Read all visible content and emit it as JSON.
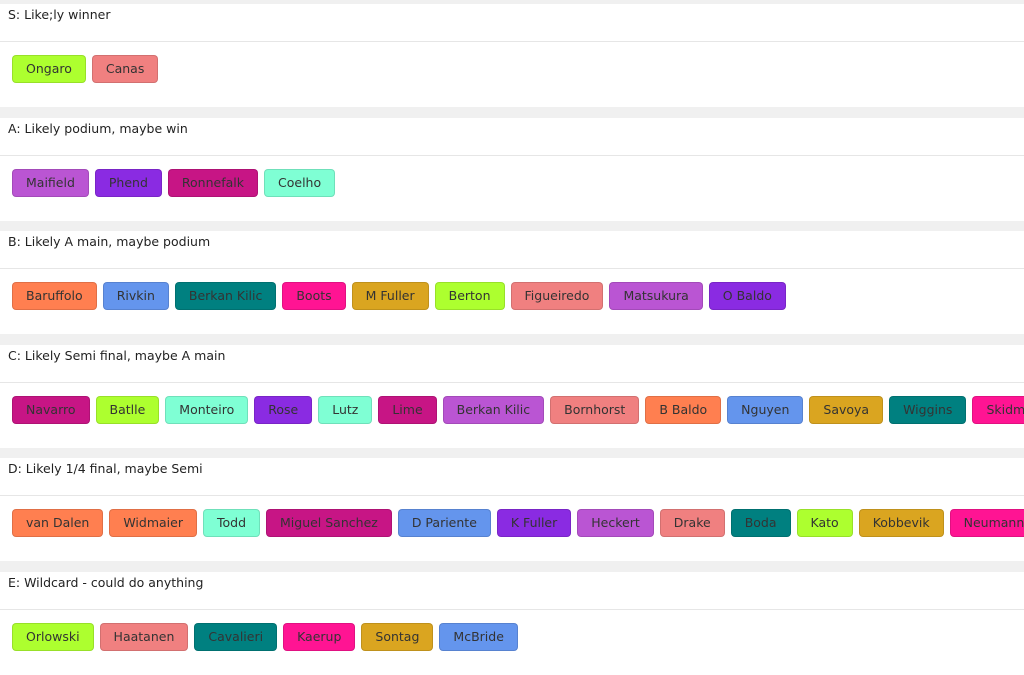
{
  "tiers": [
    {
      "title": "S: Like;ly winner",
      "chips": [
        {
          "label": "Ongaro",
          "color": "#adff2f"
        },
        {
          "label": "Canas",
          "color": "#f08080"
        }
      ]
    },
    {
      "title": "A: Likely podium, maybe win",
      "chips": [
        {
          "label": "Maifield",
          "color": "#ba55d3"
        },
        {
          "label": "Phend",
          "color": "#8a2be2"
        },
        {
          "label": "Ronnefalk",
          "color": "#c71585"
        },
        {
          "label": "Coelho",
          "color": "#7fffd4"
        }
      ]
    },
    {
      "title": "B: Likely A main, maybe podium",
      "chips": [
        {
          "label": "Baruffolo",
          "color": "#ff7f50"
        },
        {
          "label": "Rivkin",
          "color": "#6495ed"
        },
        {
          "label": "Berkan Kilic",
          "color": "#008080"
        },
        {
          "label": "Boots",
          "color": "#ff1493"
        },
        {
          "label": "M Fuller",
          "color": "#daa520"
        },
        {
          "label": "Berton",
          "color": "#adff2f"
        },
        {
          "label": "Figueiredo",
          "color": "#f08080"
        },
        {
          "label": "Matsukura",
          "color": "#ba55d3"
        },
        {
          "label": "O Baldo",
          "color": "#8a2be2"
        }
      ]
    },
    {
      "title": "C: Likely Semi final, maybe A main",
      "chips": [
        {
          "label": "Navarro",
          "color": "#c71585"
        },
        {
          "label": "Batlle",
          "color": "#adff2f"
        },
        {
          "label": "Monteiro",
          "color": "#7fffd4"
        },
        {
          "label": "Rose",
          "color": "#8a2be2"
        },
        {
          "label": "Lutz",
          "color": "#7fffd4"
        },
        {
          "label": "Lime",
          "color": "#c71585"
        },
        {
          "label": "Berkan Kilic",
          "color": "#ba55d3"
        },
        {
          "label": "Bornhorst",
          "color": "#f08080"
        },
        {
          "label": "B Baldo",
          "color": "#ff7f50"
        },
        {
          "label": "Nguyen",
          "color": "#6495ed"
        },
        {
          "label": "Savoya",
          "color": "#daa520"
        },
        {
          "label": "Wiggins",
          "color": "#008080"
        },
        {
          "label": "Skidmore",
          "color": "#ff1493"
        }
      ]
    },
    {
      "title": "D: Likely 1/4 final, maybe Semi",
      "chips": [
        {
          "label": "van Dalen",
          "color": "#ff7f50"
        },
        {
          "label": "Widmaier",
          "color": "#ff7f50"
        },
        {
          "label": "Todd",
          "color": "#7fffd4"
        },
        {
          "label": "Miguel Sanchez",
          "color": "#c71585"
        },
        {
          "label": "D Pariente",
          "color": "#6495ed"
        },
        {
          "label": "K Fuller",
          "color": "#8a2be2"
        },
        {
          "label": "Heckert",
          "color": "#ba55d3"
        },
        {
          "label": "Drake",
          "color": "#f08080"
        },
        {
          "label": "Boda",
          "color": "#008080"
        },
        {
          "label": "Kato",
          "color": "#adff2f"
        },
        {
          "label": "Kobbevik",
          "color": "#daa520"
        },
        {
          "label": "Neumann",
          "color": "#ff1493"
        }
      ]
    },
    {
      "title": "E: Wildcard - could do anything",
      "chips": [
        {
          "label": "Orlowski",
          "color": "#adff2f"
        },
        {
          "label": "Haatanen",
          "color": "#f08080"
        },
        {
          "label": "Cavalieri",
          "color": "#008080"
        },
        {
          "label": "Kaerup",
          "color": "#ff1493"
        },
        {
          "label": "Sontag",
          "color": "#daa520"
        },
        {
          "label": "McBride",
          "color": "#6495ed"
        }
      ]
    }
  ]
}
